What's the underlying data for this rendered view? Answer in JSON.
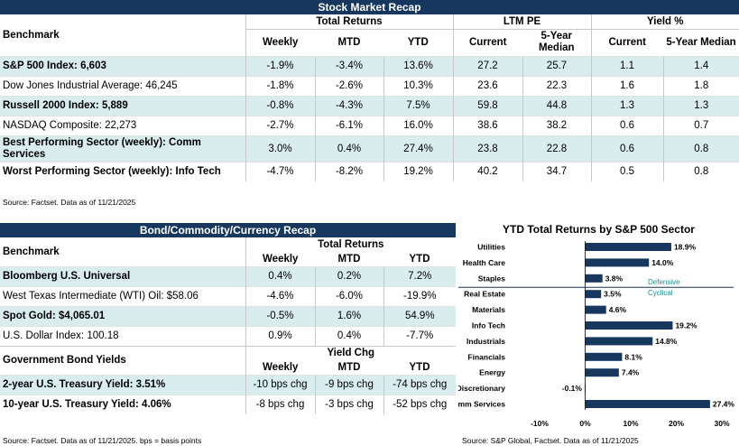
{
  "stock": {
    "title": "Stock Market Recap",
    "col_benchmark": "Benchmark",
    "group_total_returns": "Total Returns",
    "group_ltm_pe": "LTM PE",
    "group_yield": "Yield %",
    "col_weekly": "Weekly",
    "col_mtd": "MTD",
    "col_ytd": "YTD",
    "col_current_pe": "Current",
    "col_median_pe": "5-Year Median",
    "col_current_yield": "Current",
    "col_median_yield": "5-Year Median",
    "rows": [
      {
        "name": "S&P 500 Index: 6,603",
        "weekly": "-1.9%",
        "mtd": "-3.4%",
        "ytd": "13.6%",
        "pe_current": "27.2",
        "pe_median": "25.7",
        "yield_current": "1.1",
        "yield_median": "1.4"
      },
      {
        "name": "Dow Jones Industrial Average: 46,245",
        "weekly": "-1.8%",
        "mtd": "-2.6%",
        "ytd": "10.3%",
        "pe_current": "23.6",
        "pe_median": "22.3",
        "yield_current": "1.6",
        "yield_median": "1.8"
      },
      {
        "name": "Russell 2000 Index: 5,889",
        "weekly": "-0.8%",
        "mtd": "-4.3%",
        "ytd": "7.5%",
        "pe_current": "59.8",
        "pe_median": "44.8",
        "yield_current": "1.3",
        "yield_median": "1.3"
      },
      {
        "name": "NASDAQ Composite: 22,273",
        "weekly": "-2.7%",
        "mtd": "-6.1%",
        "ytd": "16.0%",
        "pe_current": "38.6",
        "pe_median": "38.2",
        "yield_current": "0.6",
        "yield_median": "0.7"
      },
      {
        "name": "Best Performing Sector (weekly): Comm Services",
        "weekly": "3.0%",
        "mtd": "0.4%",
        "ytd": "27.4%",
        "pe_current": "23.8",
        "pe_median": "22.8",
        "yield_current": "0.6",
        "yield_median": "0.8"
      },
      {
        "name": "Worst Performing Sector (weekly): Info Tech",
        "weekly": "-4.7%",
        "mtd": "-8.2%",
        "ytd": "19.2%",
        "pe_current": "40.2",
        "pe_median": "34.7",
        "yield_current": "0.5",
        "yield_median": "0.8"
      }
    ],
    "source": "Source: Factset. Data as of 11/21/2025"
  },
  "bond": {
    "title": "Bond/Commodity/Currency Recap",
    "col_benchmark": "Benchmark",
    "group_total_returns": "Total Returns",
    "col_weekly": "Weekly",
    "col_mtd": "MTD",
    "col_ytd": "YTD",
    "rows": [
      {
        "name": "Bloomberg U.S. Universal",
        "weekly": "0.4%",
        "mtd": "0.2%",
        "ytd": "7.2%"
      },
      {
        "name": "West Texas Intermediate (WTI) Oil: $58.06",
        "weekly": "-4.6%",
        "mtd": "-6.0%",
        "ytd": "-19.9%"
      },
      {
        "name": "Spot Gold: $4,065.01",
        "weekly": "-0.5%",
        "mtd": "1.6%",
        "ytd": "54.9%"
      },
      {
        "name": "U.S. Dollar Index: 100.18",
        "weekly": "0.9%",
        "mtd": "0.4%",
        "ytd": "-7.7%"
      }
    ],
    "gov_label": "Government Bond Yields",
    "group_yield_chg": "Yield Chg",
    "gov_col_weekly": "Weekly",
    "gov_col_mtd": "MTD",
    "gov_col_ytd": "YTD",
    "gov_rows": [
      {
        "name": "2-year U.S. Treasury Yield: 3.51%",
        "weekly": "-10 bps chg",
        "mtd": "-9 bps chg",
        "ytd": "-74 bps chg"
      },
      {
        "name": "10-year U.S. Treasury Yield: 4.06%",
        "weekly": "-8 bps chg",
        "mtd": "-3 bps chg",
        "ytd": "-52 bps chg"
      }
    ],
    "source": "Source: Factset. Data as of 11/21/2025. bps = basis points"
  },
  "chart_data": {
    "type": "bar",
    "orientation": "horizontal",
    "title": "YTD Total Returns by S&P 500 Sector",
    "categories": [
      "Utilities",
      "Health Care",
      "Staples",
      "Real Estate",
      "Materials",
      "Info Tech",
      "Industrials",
      "Financials",
      "Energy",
      "Discretionary",
      "Comm Services"
    ],
    "values": [
      18.9,
      14.0,
      3.8,
      3.5,
      4.6,
      19.2,
      14.8,
      8.1,
      7.4,
      -0.1,
      27.4
    ],
    "value_labels": [
      "18.9%",
      "14.0%",
      "3.8%",
      "3.5%",
      "4.6%",
      "19.2%",
      "14.8%",
      "8.1%",
      "7.4%",
      "-0.1%",
      "27.4%"
    ],
    "xlim": [
      -10,
      30
    ],
    "x_ticks": [
      -10,
      0,
      10,
      20,
      30
    ],
    "x_tick_labels": [
      "-10%",
      "0%",
      "10%",
      "20%",
      "30%"
    ],
    "divider_after_index": 2,
    "annotations": [
      {
        "text": "Defensive"
      },
      {
        "text": "Cyclical"
      }
    ],
    "bar_color": "#17375e",
    "annotation_color": "#1f8a8a",
    "grid": false,
    "source": "Source: S&P Global, Factset. Data as of 11/21/2025"
  }
}
